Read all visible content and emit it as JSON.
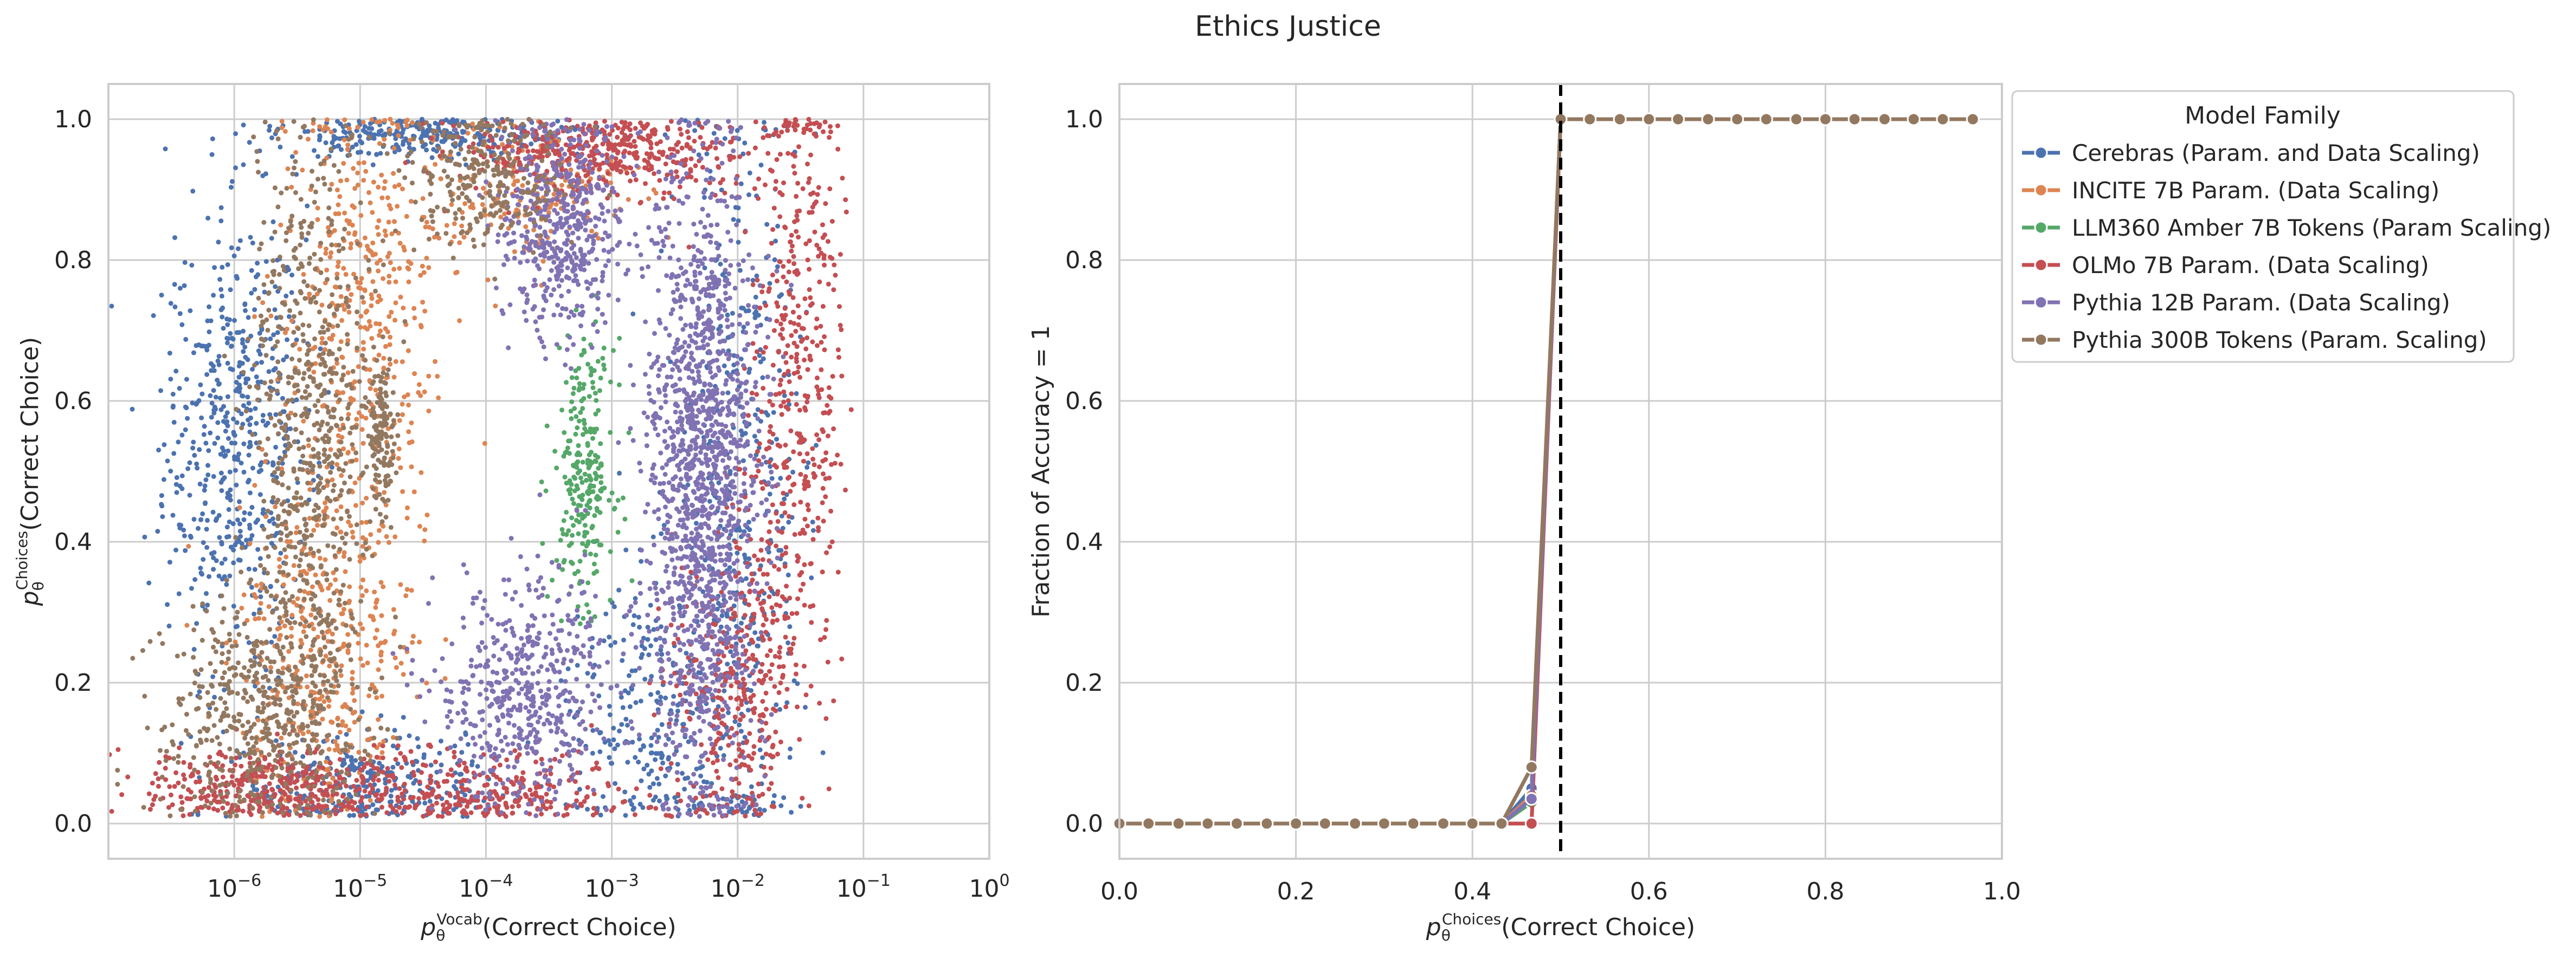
{
  "figure": {
    "title": "Ethics Justice"
  },
  "chart_data": [
    {
      "type": "scatter",
      "xscale": "log",
      "xlim": [
        1e-07,
        1.0
      ],
      "ylim": [
        -0.05,
        1.05
      ],
      "xlabel": "p_θ^Vocab(Correct Choice)",
      "ylabel": "p_θ^Choices(Correct Choice)",
      "xlabel_parts": {
        "sym": "p",
        "sub": "θ",
        "sup": "Vocab",
        "text": "(Correct Choice)"
      },
      "ylabel_parts": {
        "sym": "p",
        "sub": "θ",
        "sup": "Choices",
        "text": "(Correct Choice)"
      },
      "xticks": [
        {
          "base": "10",
          "exp": "−6",
          "value": 1e-06
        },
        {
          "base": "10",
          "exp": "−5",
          "value": 1e-05
        },
        {
          "base": "10",
          "exp": "−4",
          "value": 0.0001
        },
        {
          "base": "10",
          "exp": "−3",
          "value": 0.001
        },
        {
          "base": "10",
          "exp": "−2",
          "value": 0.01
        },
        {
          "base": "10",
          "exp": "−1",
          "value": 0.1
        },
        {
          "base": "10",
          "exp": "0",
          "value": 1
        }
      ],
      "yticks": [
        {
          "label": "0.0",
          "value": 0.0
        },
        {
          "label": "0.2",
          "value": 0.2
        },
        {
          "label": "0.4",
          "value": 0.4
        },
        {
          "label": "0.6",
          "value": 0.6
        },
        {
          "label": "0.8",
          "value": 0.8
        },
        {
          "label": "1.0",
          "value": 1.0
        }
      ],
      "grid": true,
      "series": [
        {
          "name": "Cerebras (Param. and Data Scaling)",
          "color": "#4c72b0",
          "clusters": [
            {
              "x": 1e-06,
              "y": 0.55,
              "sx": 0.28,
              "sy": 0.16,
              "n": 550
            },
            {
              "x": 3e-05,
              "y": 0.98,
              "sx": 0.6,
              "sy": 0.02,
              "n": 300
            },
            {
              "x": 0.01,
              "y": 0.45,
              "sx": 0.25,
              "sy": 0.3,
              "n": 450
            },
            {
              "x": 1e-05,
              "y": 0.05,
              "sx": 0.55,
              "sy": 0.04,
              "n": 300
            },
            {
              "x": 0.002,
              "y": 0.15,
              "sx": 0.35,
              "sy": 0.1,
              "n": 250
            }
          ]
        },
        {
          "name": "INCITE 7B Param. (Data Scaling)",
          "color": "#dd8452",
          "clusters": [
            {
              "x": 1e-05,
              "y": 0.72,
              "sx": 0.3,
              "sy": 0.18,
              "n": 450
            },
            {
              "x": 5e-06,
              "y": 0.25,
              "sx": 0.35,
              "sy": 0.12,
              "n": 400
            },
            {
              "x": 0.0002,
              "y": 0.9,
              "sx": 0.4,
              "sy": 0.05,
              "n": 200
            }
          ]
        },
        {
          "name": "LLM360 Amber 7B Tokens (Param Scaling)",
          "color": "#55a868",
          "clusters": [
            {
              "x": 0.0006,
              "y": 0.5,
              "sx": 0.12,
              "sy": 0.09,
              "n": 250
            }
          ]
        },
        {
          "name": "OLMo 7B Param. (Data Scaling)",
          "color": "#c44e52",
          "clusters": [
            {
              "x": 0.0008,
              "y": 0.95,
              "sx": 0.55,
              "sy": 0.03,
              "n": 450
            },
            {
              "x": 0.03,
              "y": 0.65,
              "sx": 0.18,
              "sy": 0.22,
              "n": 450
            },
            {
              "x": 2e-06,
              "y": 0.05,
              "sx": 0.5,
              "sy": 0.03,
              "n": 400
            },
            {
              "x": 0.01,
              "y": 0.2,
              "sx": 0.25,
              "sy": 0.12,
              "n": 350
            },
            {
              "x": 0.0001,
              "y": 0.04,
              "sx": 0.6,
              "sy": 0.03,
              "n": 300
            }
          ]
        },
        {
          "name": "Pythia 12B Param. (Data Scaling)",
          "color": "#8172b3",
          "clusters": [
            {
              "x": 0.005,
              "y": 0.5,
              "sx": 0.22,
              "sy": 0.22,
              "n": 1400
            },
            {
              "x": 0.0004,
              "y": 0.85,
              "sx": 0.25,
              "sy": 0.08,
              "n": 500
            },
            {
              "x": 0.0002,
              "y": 0.18,
              "sx": 0.35,
              "sy": 0.08,
              "n": 500
            }
          ]
        },
        {
          "name": "Pythia 300B Tokens (Param. Scaling)",
          "color": "#937860",
          "clusters": [
            {
              "x": 4e-06,
              "y": 0.55,
              "sx": 0.25,
              "sy": 0.22,
              "n": 700
            },
            {
              "x": 1.5e-06,
              "y": 0.15,
              "sx": 0.4,
              "sy": 0.08,
              "n": 450
            },
            {
              "x": 1.5e-05,
              "y": 0.55,
              "sx": 0.05,
              "sy": 0.05,
              "n": 120
            },
            {
              "x": 0.0001,
              "y": 0.92,
              "sx": 0.35,
              "sy": 0.05,
              "n": 250
            }
          ]
        }
      ]
    },
    {
      "type": "line",
      "xlim": [
        0.0,
        1.0
      ],
      "ylim": [
        -0.05,
        1.05
      ],
      "xlabel": "p_θ^Choices(Correct Choice)",
      "ylabel": "Fraction of Accuracy = 1",
      "xlabel_parts": {
        "sym": "p",
        "sub": "θ",
        "sup": "Choices",
        "text": "(Correct Choice)"
      },
      "xticks": [
        {
          "label": "0.0",
          "value": 0.0
        },
        {
          "label": "0.2",
          "value": 0.2
        },
        {
          "label": "0.4",
          "value": 0.4
        },
        {
          "label": "0.6",
          "value": 0.6
        },
        {
          "label": "0.8",
          "value": 0.8
        },
        {
          "label": "1.0",
          "value": 1.0
        }
      ],
      "yticks": [
        {
          "label": "0.0",
          "value": 0.0
        },
        {
          "label": "0.2",
          "value": 0.2
        },
        {
          "label": "0.4",
          "value": 0.4
        },
        {
          "label": "0.6",
          "value": 0.6
        },
        {
          "label": "0.8",
          "value": 0.8
        },
        {
          "label": "1.0",
          "value": 1.0
        }
      ],
      "grid": true,
      "vline": {
        "x": 0.5,
        "style": "dashed",
        "color": "#000000"
      },
      "x": [
        0.0,
        0.033,
        0.067,
        0.1,
        0.133,
        0.167,
        0.2,
        0.233,
        0.267,
        0.3,
        0.333,
        0.367,
        0.4,
        0.433,
        0.467,
        0.5,
        0.533,
        0.567,
        0.6,
        0.633,
        0.667,
        0.7,
        0.733,
        0.767,
        0.8,
        0.833,
        0.867,
        0.9,
        0.933,
        0.967
      ],
      "series": [
        {
          "name": "Cerebras (Param. and Data Scaling)",
          "color": "#4c72b0",
          "values": [
            0,
            0,
            0,
            0,
            0,
            0,
            0,
            0,
            0,
            0,
            0,
            0,
            0,
            0,
            0.05,
            1,
            1,
            1,
            1,
            1,
            1,
            1,
            1,
            1,
            1,
            1,
            1,
            1,
            1,
            1
          ]
        },
        {
          "name": "INCITE 7B Param. (Data Scaling)",
          "color": "#dd8452",
          "values": [
            0,
            0,
            0,
            0,
            0,
            0,
            0,
            0,
            0,
            0,
            0,
            0,
            0,
            0,
            0.04,
            1,
            1,
            1,
            1,
            1,
            1,
            1,
            1,
            1,
            1,
            1,
            1,
            1,
            1,
            1
          ]
        },
        {
          "name": "LLM360 Amber 7B Tokens (Param Scaling)",
          "color": "#55a868",
          "values": [
            0,
            0,
            0,
            0,
            0,
            0,
            0,
            0,
            0,
            0,
            0,
            0,
            0,
            0,
            0.03,
            1,
            1,
            1,
            1,
            1,
            1,
            1,
            1,
            1,
            1,
            1,
            1,
            1,
            1,
            1
          ]
        },
        {
          "name": "OLMo 7B Param. (Data Scaling)",
          "color": "#c44e52",
          "values": [
            0,
            0,
            0,
            0,
            0,
            0,
            0,
            0,
            0,
            0,
            0,
            0,
            0,
            0,
            0,
            1,
            1,
            1,
            1,
            1,
            1,
            1,
            1,
            1,
            1,
            1,
            1,
            1,
            1,
            1
          ]
        },
        {
          "name": "Pythia 12B Param. (Data Scaling)",
          "color": "#8172b3",
          "values": [
            0,
            0,
            0,
            0,
            0,
            0,
            0,
            0,
            0,
            0,
            0,
            0,
            0,
            0,
            0.035,
            1,
            1,
            1,
            1,
            1,
            1,
            1,
            1,
            1,
            1,
            1,
            1,
            1,
            1,
            1
          ]
        },
        {
          "name": "Pythia 300B Tokens (Param. Scaling)",
          "color": "#937860",
          "values": [
            0,
            0,
            0,
            0,
            0,
            0,
            0,
            0,
            0,
            0,
            0,
            0,
            0,
            0,
            0.08,
            1,
            1,
            1,
            1,
            1,
            1,
            1,
            1,
            1,
            1,
            1,
            1,
            1,
            1,
            1
          ]
        }
      ]
    }
  ],
  "legend": {
    "title": "Model Family",
    "placement": "outside right of second plot, top"
  }
}
